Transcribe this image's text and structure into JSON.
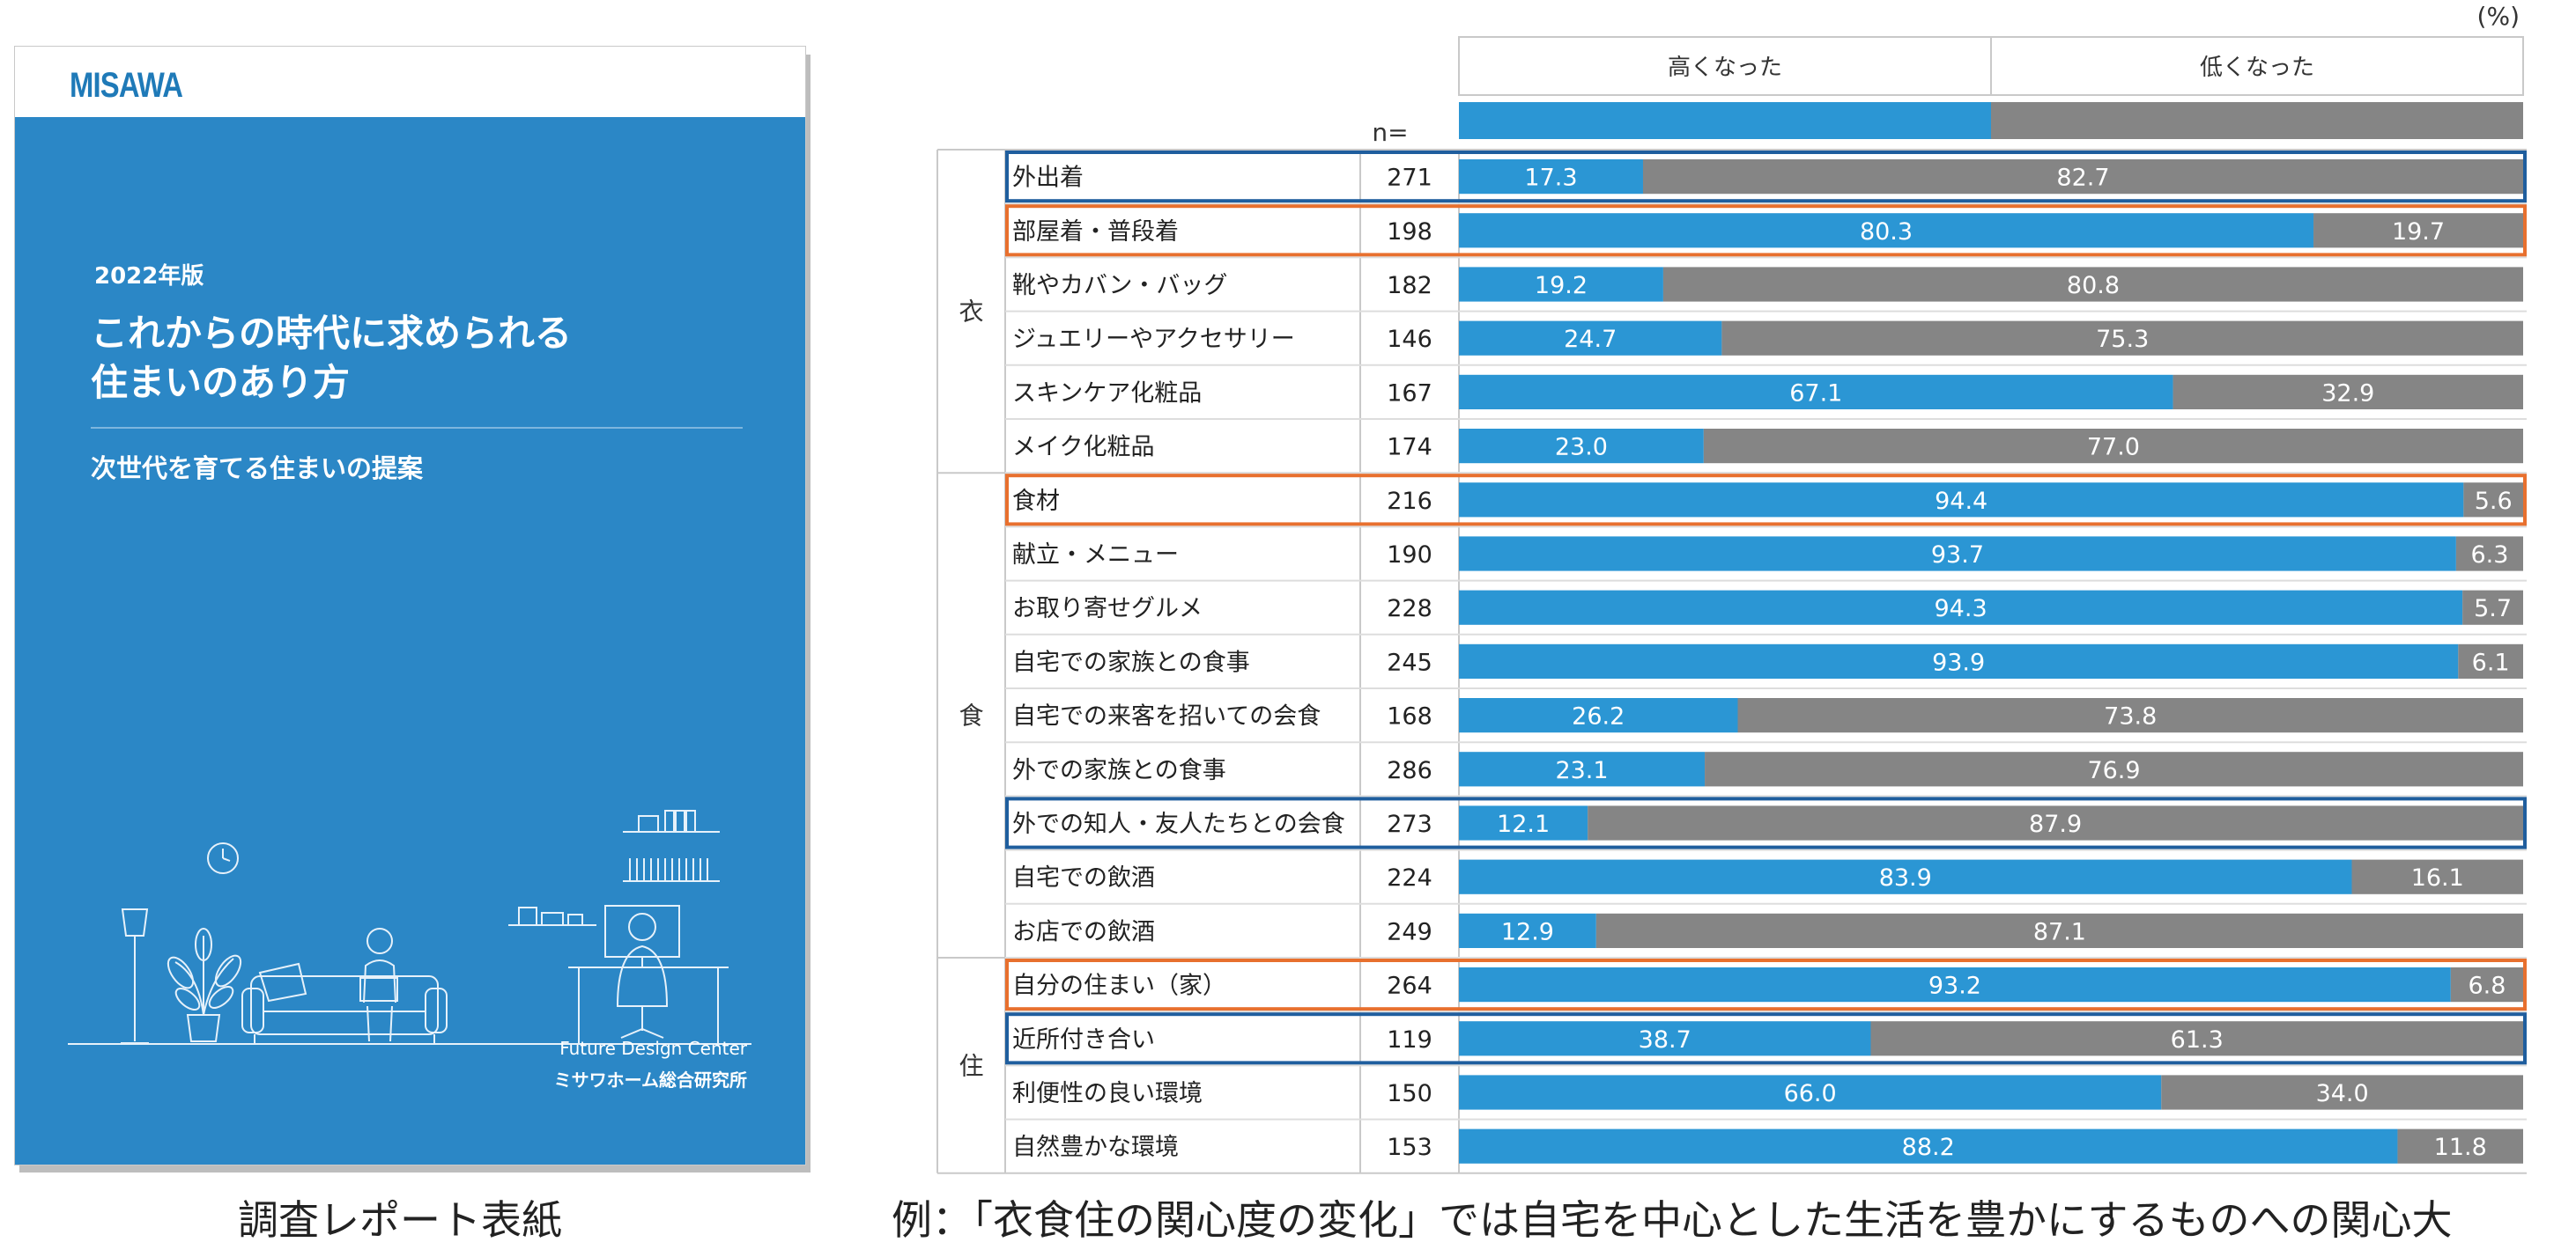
{
  "cover": {
    "brand": "MISAWA",
    "year": "2022年版",
    "title": "これからの時代に求められる\n住まいのあり方",
    "subtitle": "次世代を育てる住まいの提案",
    "org_en": "Future Design Center",
    "org_ja": "ミサワホーム総合研究所"
  },
  "captions": {
    "left": "調査レポート表紙",
    "right": "例：「衣食住の関心度の変化」では自宅を中心とした生活を豊かにするものへの関心大"
  },
  "colors": {
    "higher": "#2b96d4",
    "lower": "#858585",
    "highlight_orange": "#e8702e",
    "highlight_blue": "#1f5e9e"
  },
  "chart_data": {
    "type": "bar",
    "stacked": "100%",
    "orientation": "horizontal",
    "unit_label": "(%)",
    "n_label": "n=",
    "legend": [
      "高くなった",
      "低くなった"
    ],
    "xlim": [
      0,
      100
    ],
    "groups": [
      {
        "name": "衣",
        "items": [
          {
            "label": "外出着",
            "n": 271,
            "higher": 17.3,
            "lower": 82.7,
            "highlight": "blue"
          },
          {
            "label": "部屋着・普段着",
            "n": 198,
            "higher": 80.3,
            "lower": 19.7,
            "highlight": "orange"
          },
          {
            "label": "靴やカバン・バッグ",
            "n": 182,
            "higher": 19.2,
            "lower": 80.8,
            "highlight": ""
          },
          {
            "label": "ジュエリーやアクセサリー",
            "n": 146,
            "higher": 24.7,
            "lower": 75.3,
            "highlight": ""
          },
          {
            "label": "スキンケア化粧品",
            "n": 167,
            "higher": 67.1,
            "lower": 32.9,
            "highlight": ""
          },
          {
            "label": "メイク化粧品",
            "n": 174,
            "higher": 23.0,
            "lower": 77.0,
            "highlight": ""
          }
        ]
      },
      {
        "name": "食",
        "items": [
          {
            "label": "食材",
            "n": 216,
            "higher": 94.4,
            "lower": 5.6,
            "highlight": "orange"
          },
          {
            "label": "献立・メニュー",
            "n": 190,
            "higher": 93.7,
            "lower": 6.3,
            "highlight": ""
          },
          {
            "label": "お取り寄せグルメ",
            "n": 228,
            "higher": 94.3,
            "lower": 5.7,
            "highlight": ""
          },
          {
            "label": "自宅での家族との食事",
            "n": 245,
            "higher": 93.9,
            "lower": 6.1,
            "highlight": ""
          },
          {
            "label": "自宅での来客を招いての会食",
            "n": 168,
            "higher": 26.2,
            "lower": 73.8,
            "highlight": ""
          },
          {
            "label": "外での家族との食事",
            "n": 286,
            "higher": 23.1,
            "lower": 76.9,
            "highlight": ""
          },
          {
            "label": "外での知人・友人たちとの会食",
            "n": 273,
            "higher": 12.1,
            "lower": 87.9,
            "highlight": "blue"
          },
          {
            "label": "自宅での飲酒",
            "n": 224,
            "higher": 83.9,
            "lower": 16.1,
            "highlight": ""
          },
          {
            "label": "お店での飲酒",
            "n": 249,
            "higher": 12.9,
            "lower": 87.1,
            "highlight": ""
          }
        ]
      },
      {
        "name": "住",
        "items": [
          {
            "label": "自分の住まい（家）",
            "n": 264,
            "higher": 93.2,
            "lower": 6.8,
            "highlight": "orange"
          },
          {
            "label": "近所付き合い",
            "n": 119,
            "higher": 38.7,
            "lower": 61.3,
            "highlight": "blue"
          },
          {
            "label": "利便性の良い環境",
            "n": 150,
            "higher": 66.0,
            "lower": 34.0,
            "highlight": ""
          },
          {
            "label": "自然豊かな環境",
            "n": 153,
            "higher": 88.2,
            "lower": 11.8,
            "highlight": ""
          }
        ]
      }
    ]
  }
}
